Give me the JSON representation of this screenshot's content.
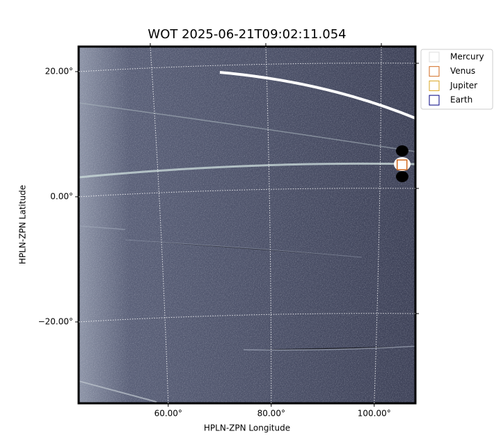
{
  "chart_data": {
    "type": "image",
    "title": "WOT 2025-06-21T09:02:11.054",
    "xlabel": "HPLN-ZPN Longitude",
    "ylabel": "HPLN-ZPN Latitude",
    "xlim": [
      42.6,
      108
    ],
    "ylim": [
      -33,
      24
    ],
    "xticks": [
      {
        "value": 60,
        "label": "60.00°"
      },
      {
        "value": 80,
        "label": "80.00°"
      },
      {
        "value": 100,
        "label": "100.00°"
      }
    ],
    "yticks": [
      {
        "value": 20,
        "label": "20.00°"
      },
      {
        "value": 0,
        "label": "0.00°"
      },
      {
        "value": -20,
        "label": "−20.00°"
      }
    ],
    "grid": true,
    "legend": "upper right",
    "series": [
      {
        "name": "Mercury",
        "color": "#dddddd"
      },
      {
        "name": "Venus",
        "color": "#d2691e",
        "x": [
          105.4
        ],
        "y": [
          5.1
        ]
      },
      {
        "name": "Jupiter",
        "color": "#daa520"
      },
      {
        "name": "Earth",
        "color": "#000080"
      }
    ]
  }
}
